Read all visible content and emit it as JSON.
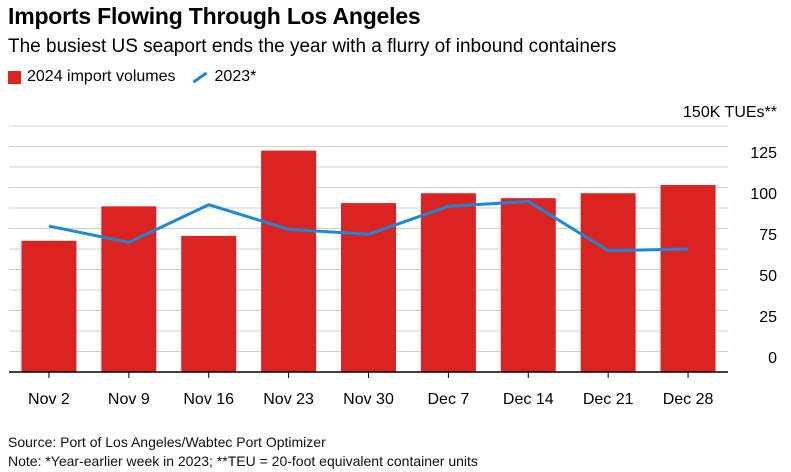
{
  "header": {
    "title": "Imports Flowing Through Los Angeles",
    "subtitle": "The busiest US seaport ends the year with a flurry of inbound containers"
  },
  "legend": {
    "bar_label": "2024 import volumes",
    "line_label": "2023*"
  },
  "footer": {
    "source": "Source: Port of Los Angeles/Wabtec Port Optimizer",
    "note": "Note: *Year-earlier week in 2023; **TEU = 20-foot equivalent container units"
  },
  "colors": {
    "bar": "#db2421",
    "line": "#1d87d8",
    "grid": "#cfcfcf",
    "axis": "#000000"
  },
  "chart_data": {
    "type": "bar",
    "categories": [
      "Nov 2",
      "Nov 9",
      "Nov 16",
      "Nov 23",
      "Nov 30",
      "Dec 7",
      "Dec 14",
      "Dec 21",
      "Dec 28"
    ],
    "series": [
      {
        "name": "2024 import volumes",
        "type": "bar",
        "values": [
          80,
          101,
          83,
          135,
          103,
          109,
          106,
          109,
          114
        ]
      },
      {
        "name": "2023*",
        "type": "line",
        "values": [
          89,
          79,
          102,
          87,
          84,
          101,
          104,
          74,
          75
        ]
      }
    ],
    "yunit_label": "150K TUEs**",
    "yticks": [
      0,
      25,
      50,
      75,
      100,
      125
    ],
    "ylim": [
      0,
      150
    ],
    "grid": true,
    "legend_position": "top-left"
  }
}
